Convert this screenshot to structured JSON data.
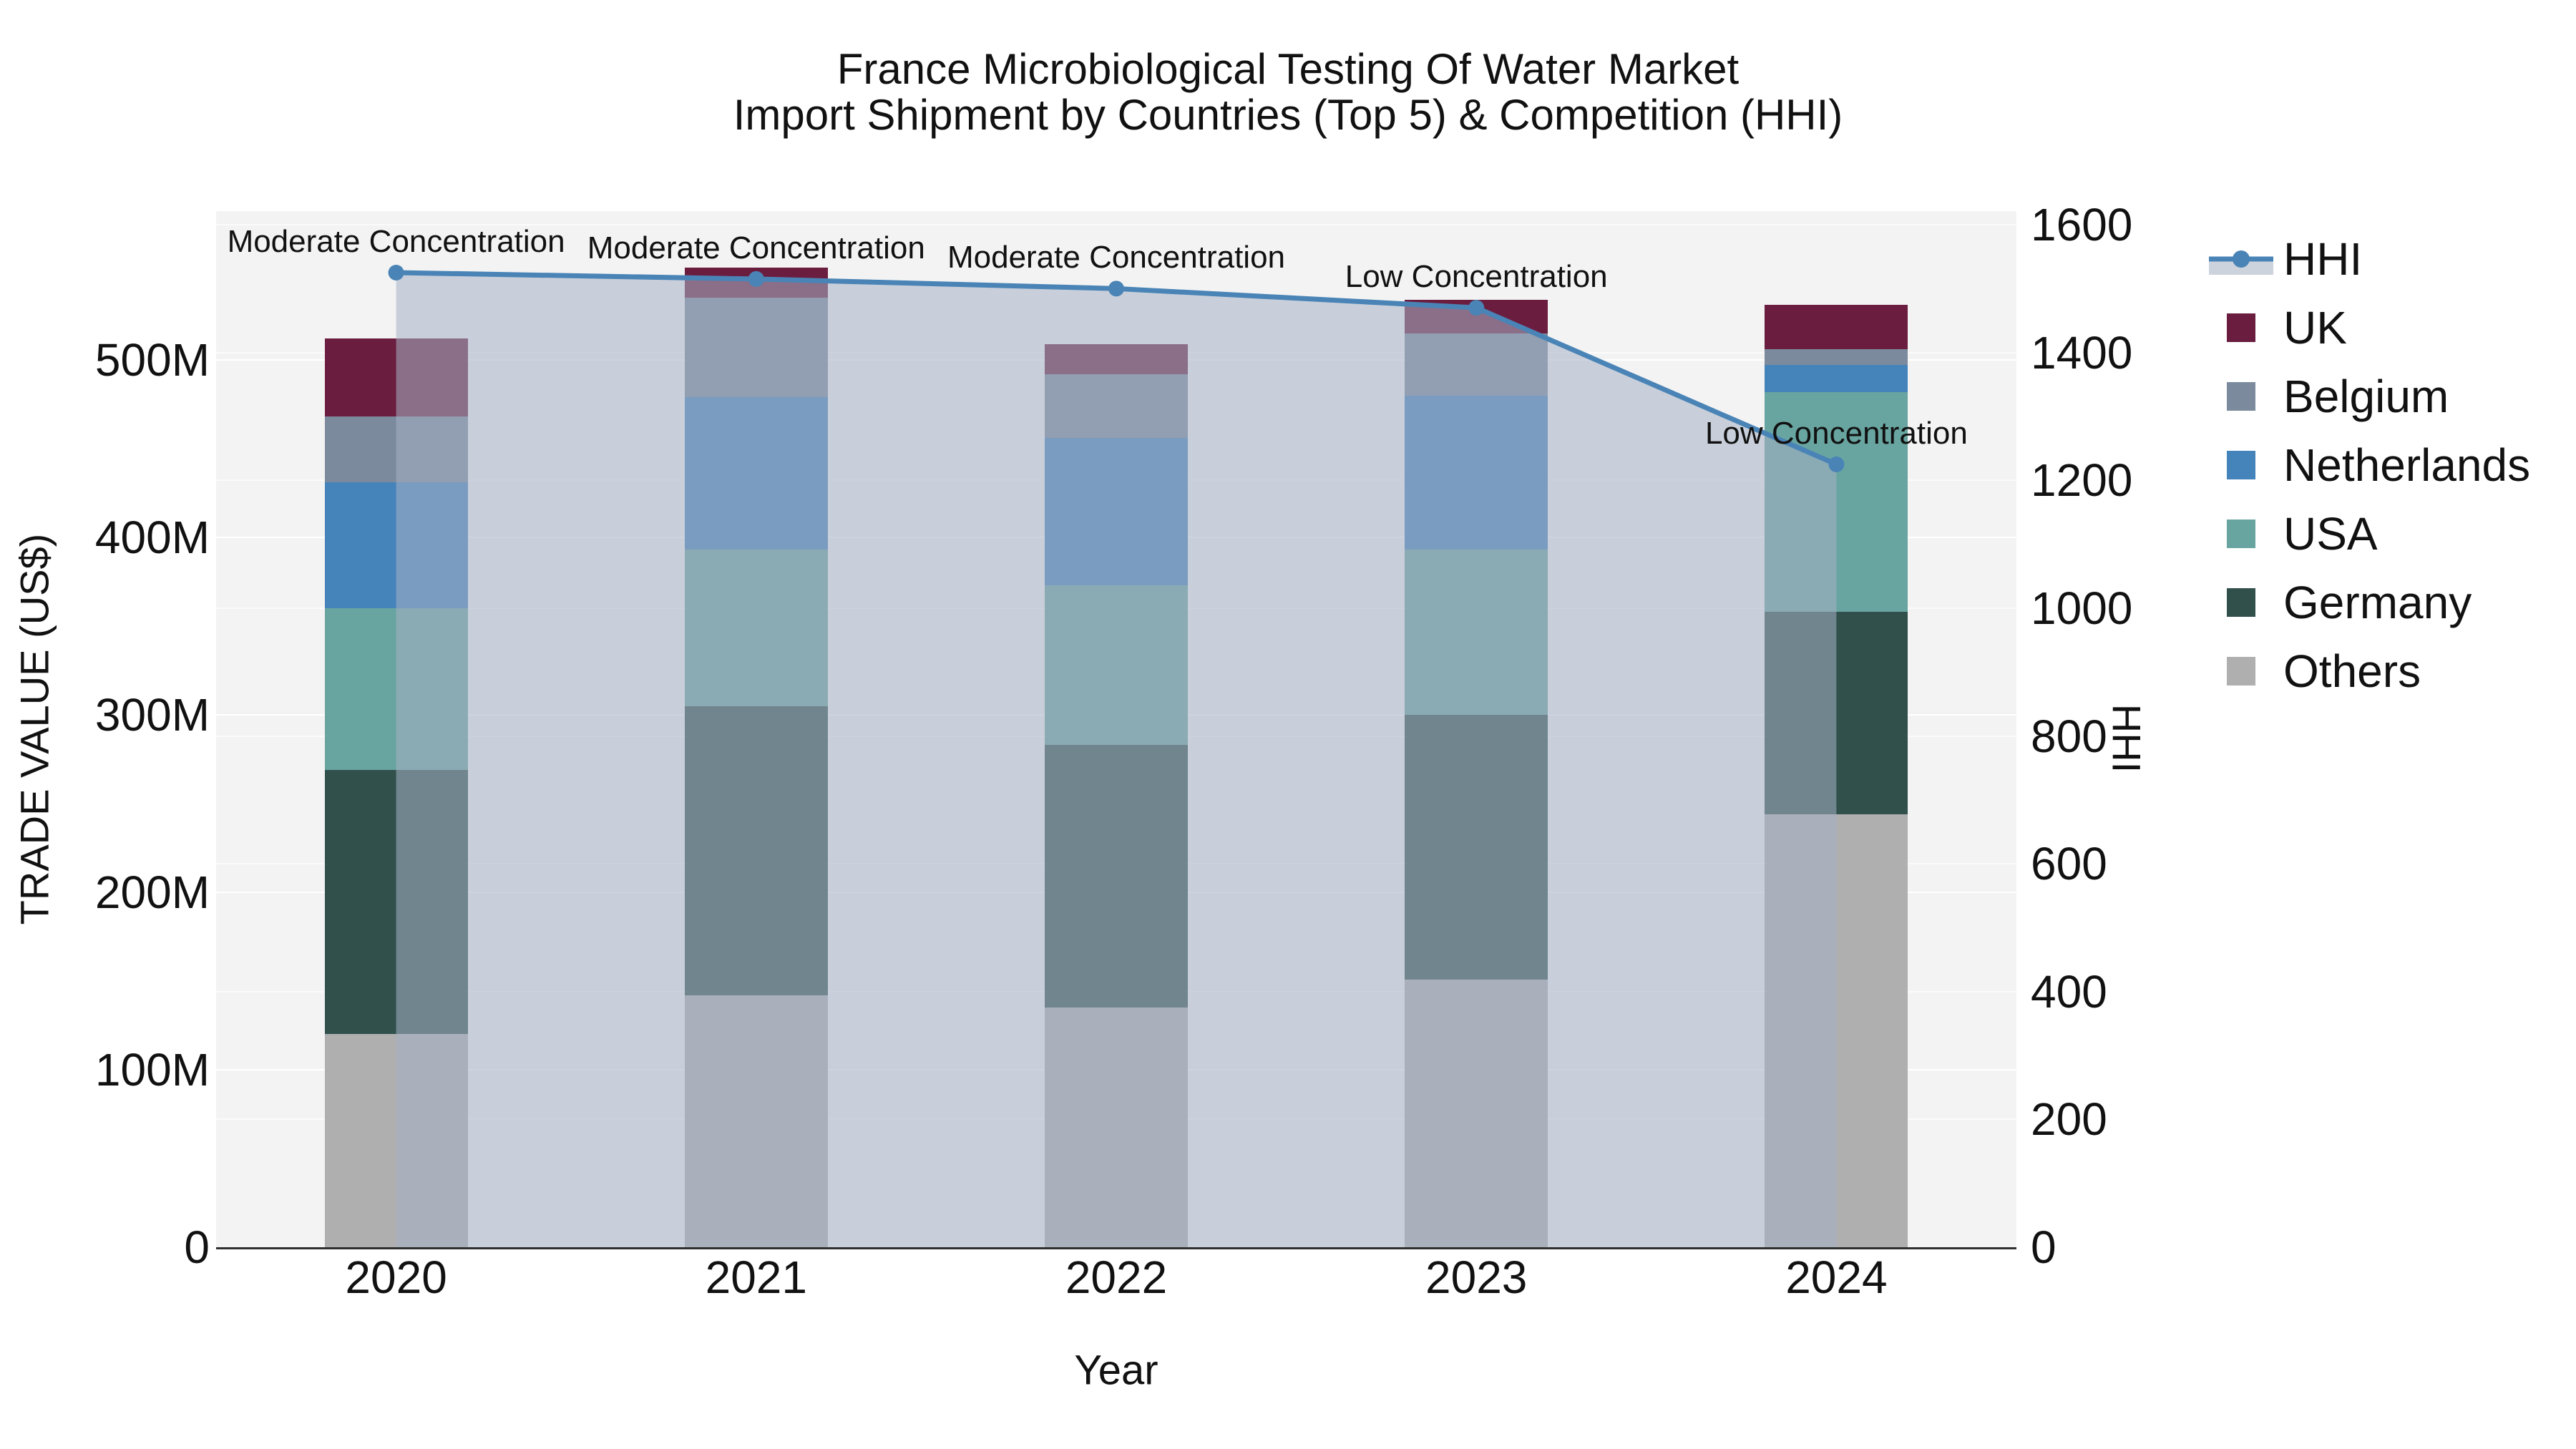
{
  "title": {
    "line1": "France Microbiological Testing Of Water Market",
    "line2": "Import Shipment by Countries (Top 5) & Competition (HHI)"
  },
  "axes": {
    "left": {
      "title": "TRADE VALUE (US$)",
      "ticks": [
        "0",
        "100M",
        "200M",
        "300M",
        "400M",
        "500M"
      ]
    },
    "right": {
      "title": "HHI",
      "ticks": [
        "0",
        "200",
        "400",
        "600",
        "800",
        "1000",
        "1200",
        "1400",
        "1600"
      ]
    },
    "x": {
      "title": "Year",
      "categories": [
        "2020",
        "2021",
        "2022",
        "2023",
        "2024"
      ]
    }
  },
  "legend": {
    "items": [
      {
        "label": "HHI",
        "type": "line",
        "color": "#4a84b6"
      },
      {
        "label": "UK",
        "type": "swatch",
        "color": "#6b1d3f"
      },
      {
        "label": "Belgium",
        "type": "swatch",
        "color": "#7b8b9d"
      },
      {
        "label": "Netherlands",
        "type": "swatch",
        "color": "#4583bb"
      },
      {
        "label": "USA",
        "type": "swatch",
        "color": "#68a5a1"
      },
      {
        "label": "Germany",
        "type": "swatch",
        "color": "#31504c"
      },
      {
        "label": "Others",
        "type": "swatch",
        "color": "#afafaf"
      }
    ]
  },
  "colors": {
    "figure_bg": "#ffffff",
    "plot_bg": "#f3f3f3",
    "grid": "#ffffff",
    "axis_line": "#2f2f2f",
    "text": "#111111",
    "hhi_line": "#4a84b6",
    "area_fill": "#a5b0c4",
    "area_opacity": 0.55,
    "legend_band": "#cdd3dc"
  },
  "chart_data": {
    "type": "bar",
    "subtype": "stacked-bar-with-line",
    "title": "France Microbiological Testing Of Water Market — Import Shipment by Countries (Top 5) & Competition (HHI)",
    "xlabel": "Year",
    "ylabel_left": "TRADE VALUE (US$)",
    "ylabel_right": "HHI",
    "categories": [
      "2020",
      "2021",
      "2022",
      "2023",
      "2024"
    ],
    "bar_value_unit": "US$ millions",
    "ylim_left_M": [
      0,
      584
    ],
    "ylim_right": [
      0,
      1620
    ],
    "grid": "on",
    "legend_position": "right",
    "stack_order_bottom_to_top": [
      "Others",
      "Germany",
      "USA",
      "Netherlands",
      "Belgium",
      "UK"
    ],
    "series": [
      {
        "name": "Others",
        "color": "#afafaf",
        "values_M": [
          120,
          142,
          135,
          151,
          244
        ]
      },
      {
        "name": "Germany",
        "color": "#31504c",
        "values_M": [
          149,
          163,
          148,
          149,
          114
        ]
      },
      {
        "name": "USA",
        "color": "#68a5a1",
        "values_M": [
          91,
          88,
          90,
          93,
          124
        ]
      },
      {
        "name": "Netherlands",
        "color": "#4583bb",
        "values_M": [
          71,
          86,
          83,
          87,
          15
        ]
      },
      {
        "name": "Belgium",
        "color": "#7b8b9d",
        "values_M": [
          37,
          56,
          36,
          35,
          9
        ]
      },
      {
        "name": "UK",
        "color": "#6b1d3f",
        "values_M": [
          44,
          17,
          17,
          19,
          25
        ]
      }
    ],
    "totals_M": [
      512,
      552,
      509,
      534,
      531
    ],
    "hhi": {
      "name": "HHI",
      "axis": "right",
      "values": [
        1525,
        1515,
        1500,
        1470,
        1225
      ]
    },
    "annotations": [
      {
        "x": "2020",
        "text": "Moderate Concentration"
      },
      {
        "x": "2021",
        "text": "Moderate Concentration"
      },
      {
        "x": "2022",
        "text": "Moderate Concentration"
      },
      {
        "x": "2023",
        "text": "Low Concentration"
      },
      {
        "x": "2024",
        "text": "Low Concentration"
      }
    ]
  }
}
